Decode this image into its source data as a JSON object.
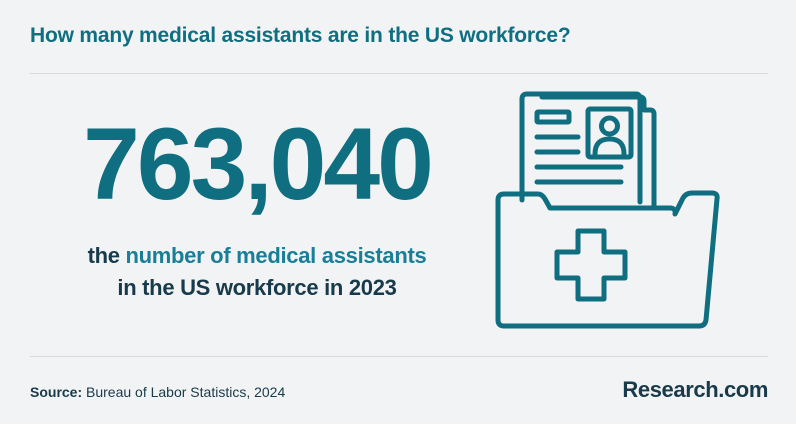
{
  "title": "How many medical assistants are in the US workforce?",
  "stat": {
    "value": "763,040"
  },
  "caption": {
    "lead": "the",
    "highlight": "number of medical assistants",
    "line2": "in the US workforce in 2023"
  },
  "source": {
    "label": "Source:",
    "text": " Bureau of Labor Statistics, 2024"
  },
  "brand": {
    "name": "Research",
    "tld": ".com"
  },
  "colors": {
    "accent": "#0f6e80",
    "highlight": "#1a7f96",
    "text": "#183a4a",
    "background": "#f1f3f4"
  },
  "icons": [
    "medical-folder-icon"
  ]
}
